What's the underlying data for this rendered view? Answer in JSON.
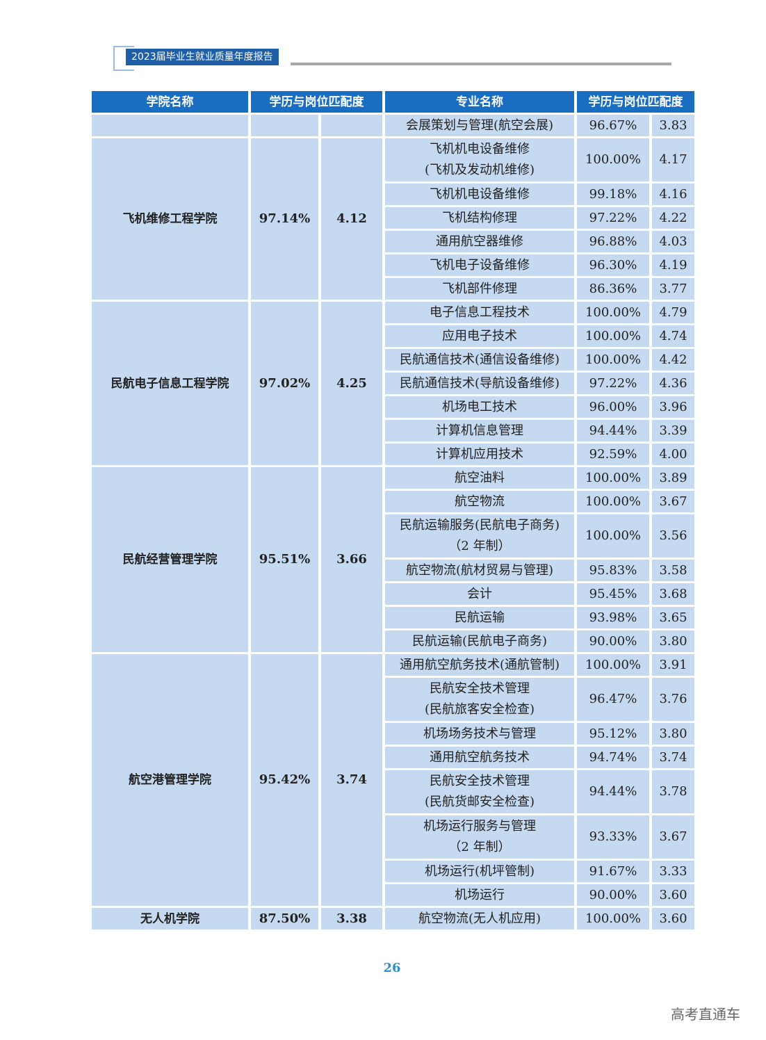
{
  "header": {
    "title": "2023届毕业生就业质量年度报告"
  },
  "table": {
    "columns": [
      "学院名称",
      "学历与岗位匹配度",
      "专业名称",
      "学历与岗位匹配度"
    ],
    "groups": [
      {
        "college": "",
        "rate": "",
        "score": "",
        "majors": [
          {
            "name": "会展策划与管理(航空会展)",
            "rate": "96.67%",
            "score": "3.83"
          }
        ]
      },
      {
        "college": "飞机维修工程学院",
        "rate": "97.14%",
        "score": "4.12",
        "majors": [
          {
            "name": "飞机机电设备维修\n(飞机及发动机维修)",
            "rate": "100.00%",
            "score": "4.17"
          },
          {
            "name": "飞机机电设备维修",
            "rate": "99.18%",
            "score": "4.16"
          },
          {
            "name": "飞机结构修理",
            "rate": "97.22%",
            "score": "4.22"
          },
          {
            "name": "通用航空器维修",
            "rate": "96.88%",
            "score": "4.03"
          },
          {
            "name": "飞机电子设备维修",
            "rate": "96.30%",
            "score": "4.19"
          },
          {
            "name": "飞机部件修理",
            "rate": "86.36%",
            "score": "3.77"
          }
        ]
      },
      {
        "college": "民航电子信息工程学院",
        "rate": "97.02%",
        "score": "4.25",
        "majors": [
          {
            "name": "电子信息工程技术",
            "rate": "100.00%",
            "score": "4.79"
          },
          {
            "name": "应用电子技术",
            "rate": "100.00%",
            "score": "4.74"
          },
          {
            "name": "民航通信技术(通信设备维修)",
            "rate": "100.00%",
            "score": "4.42"
          },
          {
            "name": "民航通信技术(导航设备维修)",
            "rate": "97.22%",
            "score": "4.36"
          },
          {
            "name": "机场电工技术",
            "rate": "96.00%",
            "score": "3.96"
          },
          {
            "name": "计算机信息管理",
            "rate": "94.44%",
            "score": "3.39"
          },
          {
            "name": "计算机应用技术",
            "rate": "92.59%",
            "score": "4.00"
          }
        ]
      },
      {
        "college": "民航经营管理学院",
        "rate": "95.51%",
        "score": "3.66",
        "majors": [
          {
            "name": "航空油料",
            "rate": "100.00%",
            "score": "3.89"
          },
          {
            "name": "航空物流",
            "rate": "100.00%",
            "score": "3.67"
          },
          {
            "name": "民航运输服务(民航电子商务)\n（2 年制）",
            "rate": "100.00%",
            "score": "3.56"
          },
          {
            "name": "航空物流(航材贸易与管理)",
            "rate": "95.83%",
            "score": "3.58"
          },
          {
            "name": "会计",
            "rate": "95.45%",
            "score": "3.68"
          },
          {
            "name": "民航运输",
            "rate": "93.98%",
            "score": "3.65"
          },
          {
            "name": "民航运输(民航电子商务)",
            "rate": "90.00%",
            "score": "3.80"
          }
        ]
      },
      {
        "college": "航空港管理学院",
        "rate": "95.42%",
        "score": "3.74",
        "majors": [
          {
            "name": "通用航空航务技术(通航管制)",
            "rate": "100.00%",
            "score": "3.91"
          },
          {
            "name": "民航安全技术管理\n(民航旅客安全检查)",
            "rate": "96.47%",
            "score": "3.76"
          },
          {
            "name": "机场场务技术与管理",
            "rate": "95.12%",
            "score": "3.80"
          },
          {
            "name": "通用航空航务技术",
            "rate": "94.74%",
            "score": "3.74"
          },
          {
            "name": "民航安全技术管理\n(民航货邮安全检查)",
            "rate": "94.44%",
            "score": "3.78"
          },
          {
            "name": "机场运行服务与管理\n（2 年制）",
            "rate": "93.33%",
            "score": "3.67"
          },
          {
            "name": "机场运行(机坪管制)",
            "rate": "91.67%",
            "score": "3.33"
          },
          {
            "name": "机场运行",
            "rate": "90.00%",
            "score": "3.60"
          }
        ]
      },
      {
        "college": "无人机学院",
        "rate": "87.50%",
        "score": "3.38",
        "majors": [
          {
            "name": "航空物流(无人机应用)",
            "rate": "100.00%",
            "score": "3.60"
          }
        ]
      }
    ]
  },
  "footer": {
    "page_number": "26",
    "watermark": "高考直通车"
  }
}
